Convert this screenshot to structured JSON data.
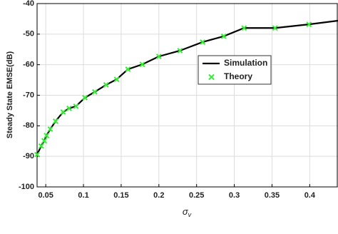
{
  "chart_data": {
    "type": "line",
    "y_label": "Steady State EMSE(dB)",
    "x_label_symbol": "σ",
    "x_label_subscript": "v",
    "xlim": [
      0.0385,
      0.4375
    ],
    "ylim": [
      -100,
      -40
    ],
    "xticks": [
      0.05,
      0.1,
      0.15,
      0.2,
      0.25,
      0.3,
      0.35,
      0.4
    ],
    "yticks": [
      -100,
      -90,
      -80,
      -70,
      -60,
      -50,
      -40
    ],
    "grid": true,
    "series": [
      {
        "name": "Simulation",
        "color": "#000000",
        "style": "line",
        "x": [
          0.0385,
          0.044,
          0.048,
          0.051,
          0.056,
          0.063,
          0.073,
          0.081,
          0.09,
          0.102,
          0.115,
          0.13,
          0.144,
          0.159,
          0.178,
          0.2,
          0.228,
          0.258,
          0.286,
          0.313,
          0.354,
          0.399,
          0.4375
        ],
        "values": [
          -89.4,
          -86.6,
          -84.9,
          -83.2,
          -81.1,
          -78.5,
          -75.5,
          -74.3,
          -73.6,
          -70.8,
          -68.9,
          -66.6,
          -64.8,
          -61.5,
          -59.9,
          -57.3,
          -55.4,
          -52.6,
          -50.7,
          -48.0,
          -48.0,
          -46.8,
          -45.6
        ]
      },
      {
        "name": "Theory",
        "color": "#33ee33",
        "style": "markers",
        "x": [
          0.0385,
          0.044,
          0.048,
          0.051,
          0.056,
          0.063,
          0.073,
          0.081,
          0.09,
          0.102,
          0.115,
          0.13,
          0.144,
          0.159,
          0.178,
          0.2,
          0.228,
          0.258,
          0.286,
          0.313,
          0.354,
          0.399
        ],
        "values": [
          -89.4,
          -86.6,
          -84.9,
          -83.2,
          -81.1,
          -78.5,
          -75.5,
          -74.3,
          -73.6,
          -70.8,
          -68.9,
          -66.6,
          -64.8,
          -61.5,
          -59.9,
          -57.3,
          -55.4,
          -52.6,
          -50.7,
          -48.0,
          -48.0,
          -46.8
        ]
      }
    ]
  }
}
